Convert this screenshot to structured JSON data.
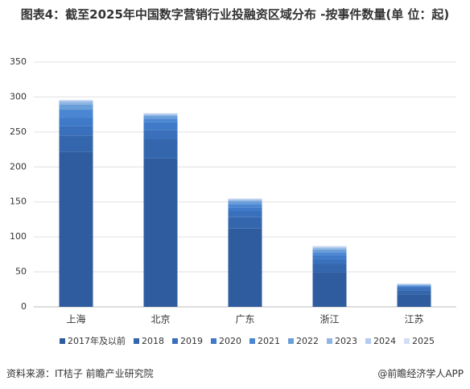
{
  "chart_data": {
    "type": "stacked-bar",
    "title": "图表4：截至2025年中国数字营销行业投融资区域分布 -按事件数量(单 位：起)",
    "categories": [
      "上海",
      "北京",
      "广东",
      "浙江",
      "江苏"
    ],
    "series": [
      {
        "name": "2017年及以前",
        "color": "#2e5c9e",
        "values": [
          222,
          212,
          112,
          49,
          18
        ]
      },
      {
        "name": "2018",
        "color": "#3466ad",
        "values": [
          23,
          28,
          16,
          12,
          6
        ]
      },
      {
        "name": "2019",
        "color": "#3a70bb",
        "values": [
          13,
          13,
          9,
          7,
          3
        ]
      },
      {
        "name": "2020",
        "color": "#3f7ac8",
        "values": [
          12,
          11,
          5,
          6,
          2
        ]
      },
      {
        "name": "2021",
        "color": "#4a86d2",
        "values": [
          12,
          5,
          5,
          4,
          1
        ]
      },
      {
        "name": "2022",
        "color": "#6a9ed9",
        "values": [
          7,
          4,
          4,
          4,
          1
        ]
      },
      {
        "name": "2023",
        "color": "#8fb5e2",
        "values": [
          4,
          2,
          2,
          2,
          1
        ]
      },
      {
        "name": "2024",
        "color": "#b3cbec",
        "values": [
          2,
          1,
          1,
          2,
          1
        ]
      },
      {
        "name": "2025",
        "color": "#d2def4",
        "values": [
          1,
          1,
          1,
          1,
          0
        ]
      }
    ],
    "ylim": [
      0,
      350
    ],
    "yticks": [
      0,
      50,
      100,
      150,
      200,
      250,
      300,
      350
    ],
    "grid": true,
    "source": "资料来源：IT桔子 前瞻产业研究院",
    "credit": "@前瞻经济学人APP"
  }
}
